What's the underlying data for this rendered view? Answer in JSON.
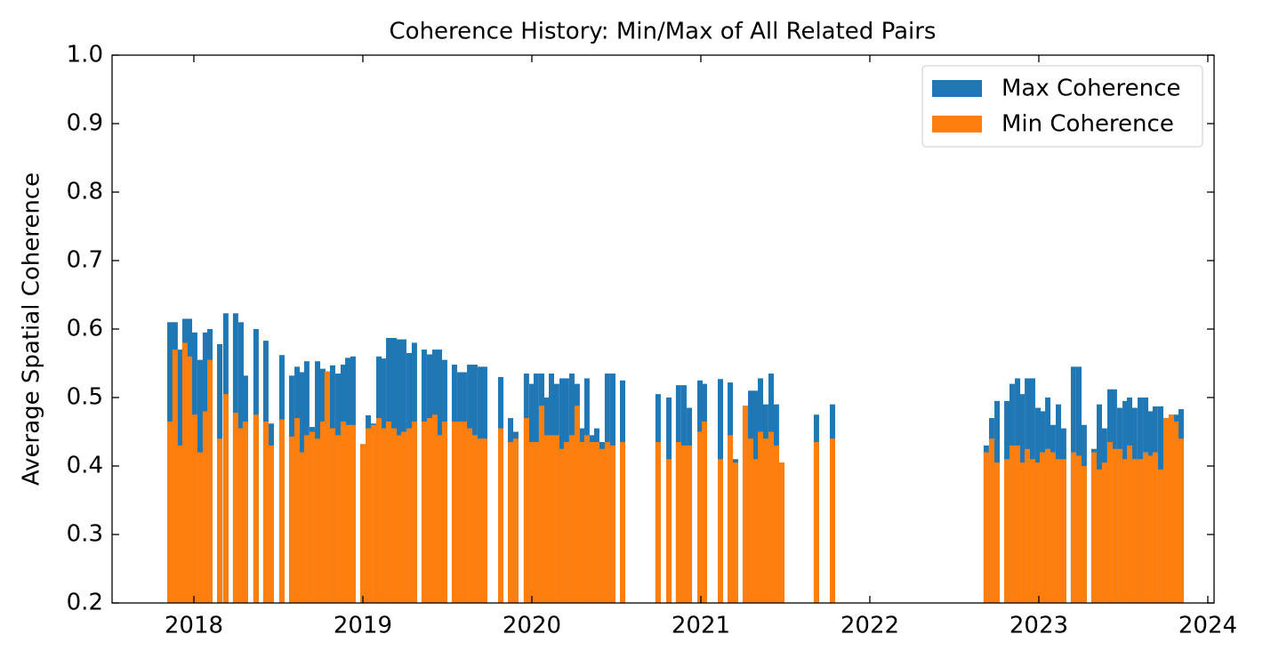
{
  "chart_data": {
    "type": "bar",
    "title": "Coherence History: Min/Max of All Related Pairs",
    "y_label": "Average Spatial Coherence",
    "x": [
      2017.858,
      2017.889,
      2017.916,
      2017.947,
      2017.974,
      2018.005,
      2018.037,
      2018.068,
      2018.095,
      2018.153,
      2018.189,
      2018.247,
      2018.279,
      2018.305,
      2018.368,
      2018.426,
      2018.458,
      2018.521,
      2018.579,
      2018.611,
      2018.642,
      2018.668,
      2018.7,
      2018.732,
      2018.763,
      2018.789,
      2018.821,
      2018.853,
      2018.884,
      2018.911,
      2018.942,
      2019.0,
      2019.032,
      2019.063,
      2019.095,
      2019.121,
      2019.153,
      2019.184,
      2019.211,
      2019.242,
      2019.274,
      2019.305,
      2019.363,
      2019.395,
      2019.426,
      2019.453,
      2019.484,
      2019.542,
      2019.574,
      2019.6,
      2019.632,
      2019.663,
      2019.695,
      2019.721,
      2019.816,
      2019.874,
      2019.905,
      2019.968,
      2020.0,
      2020.026,
      2020.058,
      2020.089,
      2020.116,
      2020.147,
      2020.179,
      2020.205,
      2020.237,
      2020.268,
      2020.295,
      2020.326,
      2020.358,
      2020.384,
      2020.416,
      2020.447,
      2020.479,
      2020.537,
      2020.747,
      2020.811,
      2020.868,
      2020.9,
      2020.932,
      2020.995,
      2021.021,
      2021.116,
      2021.174,
      2021.205,
      2021.263,
      2021.295,
      2021.326,
      2021.353,
      2021.384,
      2021.416,
      2021.447,
      2021.479,
      2021.684,
      2021.779,
      2022.689,
      2022.721,
      2022.753,
      2022.811,
      2022.842,
      2022.874,
      2022.9,
      2022.932,
      2022.963,
      2022.995,
      2023.021,
      2023.053,
      2023.084,
      2023.116,
      2023.147,
      2023.205,
      2023.237,
      2023.268,
      2023.326,
      2023.358,
      2023.389,
      2023.421,
      2023.447,
      2023.479,
      2023.511,
      2023.537,
      2023.568,
      2023.6,
      2023.632,
      2023.663,
      2023.689,
      2023.721,
      2023.753,
      2023.784,
      2023.811,
      2023.842
    ],
    "series": [
      {
        "name": "Max Coherence",
        "color": "#1f77b4",
        "values": [
          0.61,
          0.61,
          0.57,
          0.615,
          0.615,
          0.595,
          0.555,
          0.595,
          0.6,
          0.578,
          0.623,
          0.623,
          0.61,
          0.532,
          0.6,
          0.583,
          0.462,
          0.562,
          0.532,
          0.545,
          0.537,
          0.553,
          0.457,
          0.553,
          0.542,
          0.538,
          0.547,
          0.535,
          0.548,
          0.558,
          0.56,
          0.432,
          0.474,
          0.462,
          0.56,
          0.557,
          0.587,
          0.587,
          0.585,
          0.585,
          0.565,
          0.58,
          0.57,
          0.563,
          0.57,
          0.57,
          0.555,
          0.548,
          0.537,
          0.537,
          0.548,
          0.548,
          0.545,
          0.545,
          0.53,
          0.47,
          0.45,
          0.535,
          0.52,
          0.535,
          0.535,
          0.5,
          0.535,
          0.52,
          0.528,
          0.528,
          0.535,
          0.52,
          0.455,
          0.528,
          0.445,
          0.455,
          0.435,
          0.535,
          0.535,
          0.525,
          0.505,
          0.5,
          0.518,
          0.518,
          0.485,
          0.525,
          0.52,
          0.527,
          0.522,
          0.41,
          0.488,
          0.51,
          0.51,
          0.528,
          0.49,
          0.535,
          0.49,
          0.405,
          0.475,
          0.49,
          0.43,
          0.47,
          0.495,
          0.495,
          0.52,
          0.528,
          0.505,
          0.528,
          0.528,
          0.485,
          0.48,
          0.5,
          0.46,
          0.49,
          0.455,
          0.545,
          0.545,
          0.46,
          0.425,
          0.49,
          0.455,
          0.512,
          0.512,
          0.485,
          0.495,
          0.5,
          0.485,
          0.5,
          0.5,
          0.48,
          0.487,
          0.487,
          0.47,
          0.475,
          0.475,
          0.483
        ]
      },
      {
        "name": "Min Coherence",
        "color": "#ff7f0e",
        "values": [
          0.465,
          0.57,
          0.43,
          0.58,
          0.56,
          0.475,
          0.42,
          0.48,
          0.555,
          0.44,
          0.505,
          0.478,
          0.455,
          0.465,
          0.475,
          0.465,
          0.43,
          0.468,
          0.443,
          0.47,
          0.42,
          0.445,
          0.45,
          0.44,
          0.465,
          0.538,
          0.455,
          0.445,
          0.465,
          0.46,
          0.46,
          0.432,
          0.455,
          0.46,
          0.47,
          0.455,
          0.465,
          0.455,
          0.445,
          0.45,
          0.455,
          0.465,
          0.465,
          0.47,
          0.475,
          0.445,
          0.465,
          0.465,
          0.465,
          0.465,
          0.455,
          0.445,
          0.44,
          0.44,
          0.455,
          0.435,
          0.44,
          0.47,
          0.435,
          0.435,
          0.488,
          0.445,
          0.445,
          0.445,
          0.425,
          0.435,
          0.445,
          0.488,
          0.435,
          0.445,
          0.435,
          0.435,
          0.425,
          0.435,
          0.43,
          0.435,
          0.435,
          0.41,
          0.435,
          0.43,
          0.43,
          0.45,
          0.465,
          0.41,
          0.445,
          0.405,
          0.488,
          0.44,
          0.41,
          0.45,
          0.44,
          0.45,
          0.43,
          0.405,
          0.435,
          0.44,
          0.42,
          0.44,
          0.405,
          0.41,
          0.43,
          0.43,
          0.405,
          0.425,
          0.41,
          0.405,
          0.42,
          0.425,
          0.42,
          0.41,
          0.41,
          0.42,
          0.415,
          0.4,
          0.42,
          0.395,
          0.405,
          0.435,
          0.425,
          0.425,
          0.41,
          0.43,
          0.41,
          0.41,
          0.42,
          0.415,
          0.42,
          0.395,
          0.47,
          0.475,
          0.465,
          0.44
        ]
      }
    ],
    "xlim": [
      2017.516,
      2024.037
    ],
    "xticks": [
      2018,
      2019,
      2020,
      2021,
      2022,
      2023,
      2024
    ],
    "ylim": [
      0.2,
      1.0
    ],
    "yticks": [
      0.2,
      0.3,
      0.4,
      0.5,
      0.6,
      0.7,
      0.8,
      0.9,
      {
        "value": 1.0,
        "label": "1.0"
      }
    ],
    "legend": "upper right"
  }
}
